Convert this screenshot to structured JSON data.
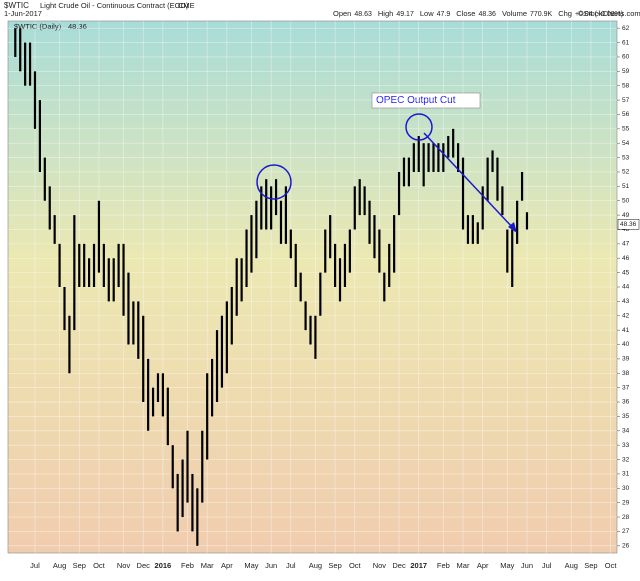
{
  "chart_data": {
    "type": "ohlc",
    "symbol": "$WTIC",
    "title": "Light Crude Oil - Continuous Contract (EOD)",
    "exchange": "CME",
    "date": "1-Jun-2017",
    "stats": [
      {
        "label": "Open",
        "value": 48.63
      },
      {
        "label": "High",
        "value": 49.17
      },
      {
        "label": "Low",
        "value": 47.9
      },
      {
        "label": "Close",
        "value": 48.36
      },
      {
        "label": "Volume",
        "value": "770.9K"
      },
      {
        "label": "Chg",
        "value": "+0.04 (+0.08%)"
      }
    ],
    "credit": "©StockCharts.com",
    "legend": "$WTIC (Daily)",
    "last": 48.36,
    "annotation": "OPEC Output Cut",
    "categories": [
      null,
      null,
      null,
      null,
      "Jul",
      null,
      null,
      null,
      null,
      "Aug",
      null,
      null,
      null,
      "Sep",
      null,
      null,
      null,
      "Oct",
      null,
      null,
      null,
      null,
      "Nov",
      null,
      null,
      null,
      "Dec",
      null,
      null,
      null,
      "2016",
      null,
      null,
      null,
      null,
      "Feb",
      null,
      null,
      null,
      "Mar",
      null,
      null,
      null,
      "Apr",
      null,
      null,
      null,
      null,
      "May",
      null,
      null,
      null,
      "Jun",
      null,
      null,
      null,
      "Jul",
      null,
      null,
      null,
      null,
      "Aug",
      null,
      null,
      null,
      "Sep",
      null,
      null,
      null,
      "Oct",
      null,
      null,
      null,
      null,
      "Nov",
      null,
      null,
      null,
      "Dec",
      null,
      null,
      null,
      "2017",
      null,
      null,
      null,
      null,
      "Feb",
      null,
      null,
      null,
      "Mar",
      null,
      null,
      null,
      "Apr",
      null,
      null,
      null,
      null,
      "May",
      null,
      null,
      null,
      "Jun",
      null,
      null,
      null,
      "Jul",
      null,
      null,
      null,
      null,
      "Aug",
      null,
      null,
      null,
      "Sep",
      null,
      null,
      null,
      "Oct",
      null,
      null,
      null
    ],
    "high": [
      62,
      62,
      61,
      61,
      59,
      57,
      53,
      51,
      49,
      47,
      44,
      42,
      49,
      47,
      47,
      46,
      47,
      50,
      47,
      46,
      46,
      47,
      47,
      45,
      43,
      43,
      42,
      39,
      37,
      38,
      38,
      37,
      33,
      31,
      32,
      34,
      31,
      30,
      34,
      38,
      39,
      41,
      42,
      43,
      44,
      46,
      46,
      48,
      49,
      50,
      51,
      51.5,
      51,
      51.5,
      50,
      51,
      48,
      47,
      45,
      43,
      42,
      42,
      45,
      48,
      49,
      47,
      46,
      47,
      48,
      51,
      51.5,
      51,
      50,
      49,
      48,
      45,
      47,
      49,
      52,
      53,
      53,
      54,
      54.5,
      54,
      54,
      54,
      54,
      54,
      54.5,
      55,
      54,
      53,
      49,
      49,
      48.5,
      51,
      53,
      53.5,
      53,
      51,
      48,
      48,
      50,
      52,
      49.2,
      null,
      null,
      null,
      null,
      null,
      null,
      null,
      null,
      null,
      null,
      null,
      null,
      null,
      null,
      null,
      null,
      null,
      null,
      null,
      null
    ],
    "low": [
      60,
      59,
      58,
      58,
      55,
      52,
      50,
      48,
      47,
      44,
      41,
      38,
      41,
      44,
      44,
      44,
      44,
      45,
      44,
      43,
      43,
      44,
      42,
      40,
      40,
      39,
      36,
      34,
      35,
      36,
      35,
      33,
      30,
      27,
      28,
      29,
      27,
      26,
      29,
      32,
      35,
      36,
      37,
      38,
      40,
      42,
      43,
      44,
      45,
      46,
      48,
      48,
      48,
      49,
      47,
      47,
      46,
      44,
      43,
      41,
      40,
      39,
      42,
      45,
      46,
      44,
      43,
      44,
      45,
      48,
      49,
      49,
      47,
      46,
      45,
      43,
      44,
      45,
      49,
      51,
      51,
      52,
      52,
      51,
      52,
      52,
      52,
      52,
      53,
      53,
      52,
      48,
      47,
      47,
      47,
      48,
      50,
      52,
      50,
      49,
      45,
      44,
      47,
      50,
      48,
      null,
      null,
      null,
      null,
      null,
      null,
      null,
      null,
      null,
      null,
      null,
      null,
      null,
      null,
      null,
      null,
      null,
      null,
      null,
      null
    ],
    "ylim": [
      25.5,
      62.5
    ],
    "yticks": [
      26,
      27,
      28,
      29,
      30,
      31,
      32,
      33,
      34,
      35,
      36,
      37,
      38,
      39,
      40,
      41,
      42,
      43,
      44,
      45,
      46,
      47,
      48,
      49,
      50,
      51,
      52,
      53,
      54,
      55,
      56,
      57,
      58,
      59,
      60,
      61,
      62
    ],
    "color": "#000000",
    "grid": true
  }
}
